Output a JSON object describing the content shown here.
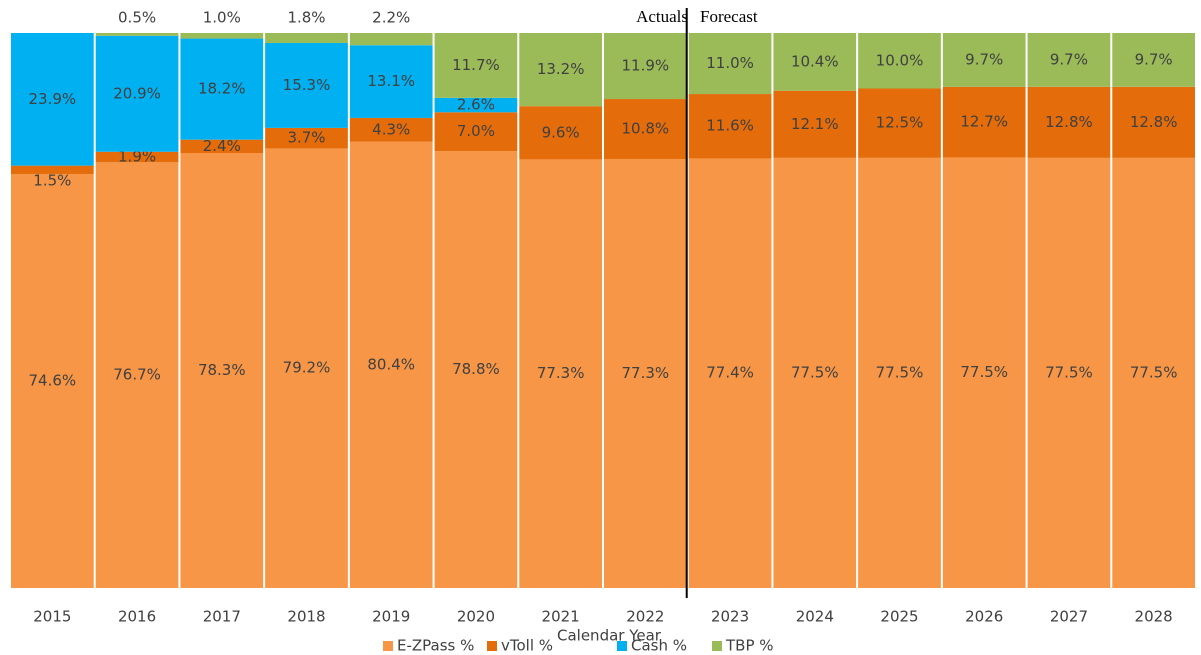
{
  "chart_data": {
    "type": "bar",
    "stacked": "percent",
    "x_label": "Calendar Year",
    "annotations": [
      "Actuals",
      "Forecast"
    ],
    "categories": [
      "2015",
      "2016",
      "2017",
      "2018",
      "2019",
      "2020",
      "2021",
      "2022",
      "2023",
      "2024",
      "2025",
      "2026",
      "2027",
      "2028"
    ],
    "series": [
      {
        "name": "E-ZPass %",
        "color": "#f79646",
        "values": [
          74.6,
          76.7,
          78.3,
          79.2,
          80.4,
          78.8,
          77.3,
          77.3,
          77.4,
          77.5,
          77.5,
          77.5,
          77.5,
          77.5
        ],
        "value_labels": [
          "74.6%",
          "76.7%",
          "78.3%",
          "79.2%",
          "80.4%",
          "78.8%",
          "77.3%",
          "77.3%",
          "77.4%",
          "77.5%",
          "77.5%",
          "77.5%",
          "77.5%",
          "77.5%"
        ]
      },
      {
        "name": "vToll %",
        "color": "#e46c0a",
        "values": [
          1.5,
          1.9,
          2.4,
          3.7,
          4.3,
          7.0,
          9.6,
          10.8,
          11.6,
          12.1,
          12.5,
          12.7,
          12.8,
          12.8
        ],
        "value_labels": [
          "1.5%",
          "1.9%",
          "2.4%",
          "3.7%",
          "4.3%",
          "7.0%",
          "9.6%",
          "10.8%",
          "11.6%",
          "12.1%",
          "12.5%",
          "12.7%",
          "12.8%",
          "12.8%"
        ]
      },
      {
        "name": "Cash %",
        "color": "#00b0f0",
        "values": [
          23.9,
          20.9,
          18.2,
          15.3,
          13.1,
          2.6,
          0,
          0,
          0,
          0,
          0,
          0,
          0,
          0
        ],
        "value_labels": [
          "23.9%",
          "20.9%",
          "18.2%",
          "15.3%",
          "13.1%",
          "2.6%",
          null,
          null,
          null,
          null,
          null,
          null,
          null,
          null
        ]
      },
      {
        "name": "TBP %",
        "color": "#9bbb59",
        "values": [
          0,
          0.5,
          1.0,
          1.8,
          2.2,
          11.7,
          13.2,
          11.9,
          11.0,
          10.4,
          10.0,
          9.7,
          9.7,
          9.7
        ],
        "value_labels": [
          null,
          "0.5%",
          "1.0%",
          "1.8%",
          "2.2%",
          "11.7%",
          "13.2%",
          "11.9%",
          "11.0%",
          "10.4%",
          "10.0%",
          "9.7%",
          "9.7%",
          "9.7%"
        ]
      }
    ]
  }
}
